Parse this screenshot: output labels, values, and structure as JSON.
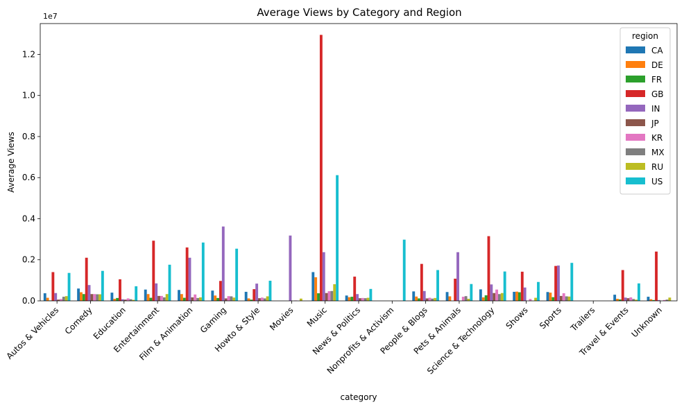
{
  "chart_data": {
    "type": "bar",
    "title": "Average Views by Category and Region",
    "xlabel": "category",
    "ylabel": "Average Views",
    "offset_label": "1e7",
    "ylim": [
      0,
      13500000
    ],
    "yticks": [
      0,
      2000000,
      4000000,
      6000000,
      8000000,
      10000000,
      12000000
    ],
    "ytick_labels": [
      "0.0",
      "0.2",
      "0.4",
      "0.6",
      "0.8",
      "1.0",
      "1.2"
    ],
    "grid": false,
    "legend_title": "region",
    "legend_position": "top-right",
    "categories": [
      "Autos & Vehicles",
      "Comedy",
      "Education",
      "Entertainment",
      "Film & Animation",
      "Gaming",
      "Howto & Style",
      "Movies",
      "Music",
      "News & Politics",
      "Nonprofits & Activism",
      "People & Blogs",
      "Pets & Animals",
      "Science & Technology",
      "Shows",
      "Sports",
      "Trailers",
      "Travel & Events",
      "Unknown"
    ],
    "series": [
      {
        "name": "CA",
        "color": "#1f77b4",
        "values": [
          370000,
          600000,
          400000,
          550000,
          530000,
          500000,
          440000,
          null,
          1400000,
          260000,
          null,
          460000,
          430000,
          560000,
          440000,
          430000,
          null,
          300000,
          200000
        ]
      },
      {
        "name": "DE",
        "color": "#ff7f0e",
        "values": [
          150000,
          420000,
          100000,
          330000,
          330000,
          260000,
          120000,
          null,
          1150000,
          180000,
          null,
          210000,
          220000,
          170000,
          450000,
          400000,
          null,
          100000,
          80000
        ]
      },
      {
        "name": "FR",
        "color": "#2ca02c",
        "values": [
          20000,
          330000,
          140000,
          150000,
          150000,
          140000,
          60000,
          null,
          370000,
          200000,
          null,
          120000,
          null,
          270000,
          420000,
          180000,
          null,
          70000,
          40000
        ]
      },
      {
        "name": "GB",
        "color": "#d62728",
        "values": [
          1400000,
          2100000,
          1050000,
          2930000,
          2600000,
          970000,
          570000,
          null,
          12950000,
          1180000,
          null,
          1800000,
          1080000,
          3150000,
          1420000,
          1700000,
          null,
          1500000,
          2400000
        ]
      },
      {
        "name": "IN",
        "color": "#9467bd",
        "values": [
          380000,
          770000,
          80000,
          850000,
          2100000,
          3620000,
          840000,
          3180000,
          2370000,
          330000,
          null,
          480000,
          2370000,
          800000,
          650000,
          1720000,
          null,
          160000,
          40000
        ]
      },
      {
        "name": "JP",
        "color": "#8c564b",
        "values": [
          60000,
          330000,
          60000,
          240000,
          170000,
          120000,
          130000,
          null,
          380000,
          130000,
          null,
          120000,
          null,
          380000,
          null,
          240000,
          null,
          130000,
          null
        ]
      },
      {
        "name": "KR",
        "color": "#e377c2",
        "values": [
          90000,
          330000,
          120000,
          240000,
          310000,
          230000,
          160000,
          20000,
          470000,
          140000,
          null,
          150000,
          200000,
          550000,
          90000,
          370000,
          null,
          170000,
          40000
        ]
      },
      {
        "name": "MX",
        "color": "#7f7f7f",
        "values": [
          200000,
          320000,
          80000,
          170000,
          140000,
          220000,
          120000,
          null,
          480000,
          130000,
          null,
          110000,
          230000,
          330000,
          null,
          220000,
          null,
          90000,
          60000
        ]
      },
      {
        "name": "RU",
        "color": "#bcbd22",
        "values": [
          230000,
          320000,
          50000,
          330000,
          170000,
          160000,
          220000,
          110000,
          810000,
          150000,
          null,
          140000,
          100000,
          380000,
          150000,
          210000,
          null,
          60000,
          160000
        ]
      },
      {
        "name": "US",
        "color": "#17becf",
        "values": [
          1360000,
          1460000,
          710000,
          1760000,
          2840000,
          2540000,
          980000,
          null,
          6120000,
          580000,
          2980000,
          1500000,
          820000,
          1430000,
          920000,
          1850000,
          null,
          850000,
          null
        ]
      }
    ]
  }
}
